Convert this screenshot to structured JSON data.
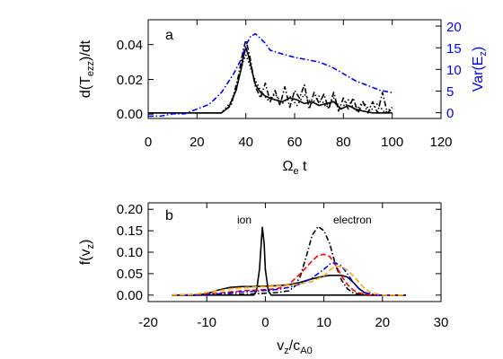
{
  "chart_data": [
    {
      "panel_label": "a",
      "type": "line",
      "xlabel": "Ωe t",
      "ylabel": "d(Tezz)/dt",
      "y2label": "Var(Ez)",
      "xlim": [
        0,
        120
      ],
      "ylim": [
        -0.003,
        0.05
      ],
      "y2lim": [
        -0.5,
        20.5
      ],
      "xticks": [
        "0",
        "20",
        "40",
        "60",
        "80",
        "100",
        "120"
      ],
      "yticks": [
        "0.00",
        "0.02",
        "0.04"
      ],
      "y2ticks": [
        "0",
        "5",
        "10",
        "15",
        "20"
      ],
      "series": [
        {
          "color": "#000000",
          "style": "solid",
          "axis": "left",
          "x": [
            0,
            20,
            30,
            33,
            36,
            38,
            39,
            40,
            41,
            42,
            43,
            44,
            46,
            48,
            50,
            52,
            55,
            58,
            61,
            64,
            67,
            70,
            73,
            76,
            79,
            82,
            85,
            88,
            92,
            96,
            100
          ],
          "y": [
            0,
            0,
            0,
            0.003,
            0.012,
            0.023,
            0.03,
            0.035,
            0.031,
            0.026,
            0.02,
            0.015,
            0.011,
            0.009,
            0.008,
            0.007,
            0.006,
            0.008,
            0.007,
            0.005,
            0.006,
            0.004,
            0.005,
            0.006,
            0.002,
            0.004,
            0.002,
            0.001,
            0,
            0,
            0
          ]
        },
        {
          "color": "#000000",
          "style": "dashdot",
          "axis": "left",
          "x": [
            0,
            20,
            30,
            34,
            37,
            39,
            40,
            41,
            42,
            43,
            44,
            46,
            48,
            50,
            52,
            54,
            56,
            58,
            60,
            62,
            64,
            66,
            68,
            70,
            72,
            74,
            76,
            78,
            80,
            82,
            84,
            86,
            88,
            90,
            92,
            94,
            96,
            98,
            100
          ],
          "y": [
            0,
            0,
            0,
            0.004,
            0.02,
            0.034,
            0.039,
            0.034,
            0.028,
            0.02,
            0.014,
            0.008,
            0.016,
            0.006,
            0.012,
            0.004,
            0.014,
            0.003,
            0.012,
            0.008,
            0.015,
            0.002,
            0.011,
            0.005,
            0.01,
            0.002,
            0.011,
            0.001,
            0.008,
            0.002,
            0.008,
            0,
            0.006,
            0,
            0.006,
            0,
            0.011,
            0,
            0.002
          ]
        },
        {
          "color": "#000000",
          "style": "dotted",
          "axis": "left",
          "x": [
            0,
            20,
            30,
            34,
            37,
            39,
            40,
            41,
            43,
            46,
            49,
            52,
            55,
            58,
            61,
            64,
            67,
            70,
            73,
            76,
            79,
            82,
            85,
            88,
            91,
            94,
            97,
            100
          ],
          "y": [
            0,
            0,
            0,
            0.006,
            0.018,
            0.028,
            0.031,
            0.028,
            0.02,
            0.012,
            0.007,
            0.01,
            0.005,
            0.009,
            0.004,
            0.01,
            0.005,
            0.009,
            0.003,
            0.008,
            0.002,
            0.007,
            0.001,
            0.006,
            0.001,
            0.005,
            0,
            0.003
          ]
        },
        {
          "color": "#0000ff",
          "style": "dashdot",
          "axis": "right",
          "x": [
            0,
            5,
            10,
            15,
            20,
            25,
            30,
            35,
            38,
            40,
            42,
            44,
            46,
            48,
            50,
            55,
            60,
            65,
            70,
            75,
            80,
            85,
            90,
            95,
            100
          ],
          "y": [
            0,
            0,
            0.5,
            0.5,
            1.5,
            2.5,
            5,
            9,
            12,
            15,
            17,
            17.5,
            16.5,
            15.5,
            14,
            13.2,
            12.5,
            12,
            11.5,
            10.5,
            9,
            7.5,
            6.5,
            5.5,
            5
          ]
        }
      ]
    },
    {
      "panel_label": "b",
      "type": "line",
      "xlabel": "vz/cA0",
      "ylabel": "f(vz)",
      "xlim": [
        -20,
        30
      ],
      "ylim": [
        -0.015,
        0.215
      ],
      "xticks": [
        "-20",
        "-10",
        "0",
        "10",
        "20",
        "30"
      ],
      "yticks": [
        "0.00",
        "0.05",
        "0.10",
        "0.15",
        "0.20"
      ],
      "annotations": [
        "ion",
        "electron"
      ],
      "series": [
        {
          "color": "#000000",
          "style": "solid",
          "x": [
            -16,
            -4,
            -2,
            -1.5,
            -1,
            -0.7,
            -0.5,
            -0.2,
            0,
            0.5,
            1,
            2,
            4,
            24
          ],
          "y": [
            0,
            0,
            0,
            0.01,
            0.06,
            0.12,
            0.158,
            0.12,
            0.06,
            0.01,
            0,
            0,
            0,
            0
          ]
        },
        {
          "color": "#000000",
          "style": "solid",
          "x": [
            -16,
            -12,
            -10,
            -8,
            -6,
            -4,
            -2,
            0,
            2,
            4,
            6,
            8,
            10,
            11,
            12,
            13,
            14,
            15,
            16,
            17,
            18,
            20,
            24
          ],
          "y": [
            0,
            0,
            0.003,
            0.012,
            0.018,
            0.02,
            0.02,
            0.021,
            0.022,
            0.024,
            0.03,
            0.038,
            0.044,
            0.046,
            0.046,
            0.046,
            0.042,
            0.03,
            0.015,
            0.005,
            0,
            0,
            0
          ]
        },
        {
          "color": "#000000",
          "style": "dashdot",
          "x": [
            -16,
            -10,
            -6,
            -2,
            2,
            4,
            5,
            6,
            7,
            8,
            9,
            10,
            11,
            12,
            13,
            14,
            15,
            17,
            24
          ],
          "y": [
            0,
            0,
            0.001,
            0.003,
            0.006,
            0.01,
            0.02,
            0.045,
            0.09,
            0.14,
            0.16,
            0.15,
            0.12,
            0.07,
            0.035,
            0.015,
            0.005,
            0,
            0
          ]
        },
        {
          "color": "#ff0000",
          "style": "dashed",
          "x": [
            -16,
            -10,
            -7,
            -4,
            -1,
            2,
            4,
            6,
            8,
            9,
            10,
            11,
            12,
            13,
            14,
            15,
            16,
            18,
            24
          ],
          "y": [
            0,
            0.002,
            0.006,
            0.01,
            0.012,
            0.015,
            0.025,
            0.05,
            0.08,
            0.092,
            0.095,
            0.09,
            0.07,
            0.045,
            0.025,
            0.012,
            0.005,
            0,
            0
          ]
        },
        {
          "color": "#0000ff",
          "style": "dashdot",
          "x": [
            -16,
            -10,
            -6,
            -2,
            2,
            4,
            6,
            8,
            9,
            10,
            11,
            12,
            13,
            14,
            15,
            16,
            17,
            19,
            24
          ],
          "y": [
            0,
            0.001,
            0.005,
            0.009,
            0.013,
            0.018,
            0.026,
            0.04,
            0.05,
            0.06,
            0.072,
            0.075,
            0.068,
            0.05,
            0.03,
            0.015,
            0.006,
            0,
            0
          ]
        },
        {
          "color": "#ffa500",
          "style": "dashed",
          "x": [
            -16,
            -12,
            -9,
            -6,
            -3,
            0,
            3,
            6,
            8,
            10,
            11,
            12,
            13,
            14,
            15,
            16,
            17,
            18,
            20,
            24
          ],
          "y": [
            0,
            0.002,
            0.008,
            0.015,
            0.018,
            0.02,
            0.022,
            0.026,
            0.032,
            0.045,
            0.058,
            0.068,
            0.066,
            0.058,
            0.045,
            0.03,
            0.015,
            0.006,
            0,
            0
          ]
        }
      ]
    }
  ]
}
